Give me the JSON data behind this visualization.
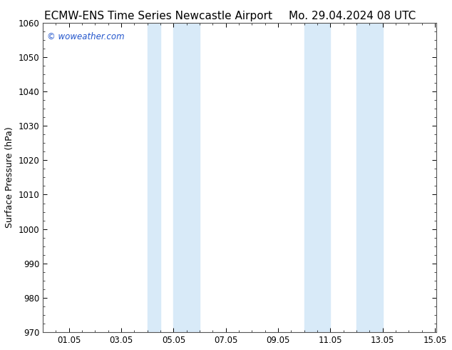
{
  "title_left": "ECMW-ENS Time Series Newcastle Airport",
  "title_right": "Mo. 29.04.2024 08 UTC",
  "ylabel": "Surface Pressure (hPa)",
  "xlim": [
    0,
    15.05
  ],
  "ylim": [
    970,
    1060
  ],
  "yticks": [
    970,
    980,
    990,
    1000,
    1010,
    1020,
    1030,
    1040,
    1050,
    1060
  ],
  "xtick_positions": [
    1,
    3,
    5,
    7,
    9,
    11,
    13,
    15
  ],
  "xtick_labels": [
    "01.05",
    "03.05",
    "05.05",
    "07.05",
    "09.05",
    "11.05",
    "13.05",
    "15.05"
  ],
  "background_color": "#ffffff",
  "plot_bg_color": "#ffffff",
  "shaded_regions": [
    {
      "xmin": 4.0,
      "xmax": 4.5,
      "color": "#d8eaf8"
    },
    {
      "xmin": 5.0,
      "xmax": 6.0,
      "color": "#d8eaf8"
    },
    {
      "xmin": 10.0,
      "xmax": 11.0,
      "color": "#d8eaf8"
    },
    {
      "xmin": 12.0,
      "xmax": 13.0,
      "color": "#d8eaf8"
    }
  ],
  "watermark_text": "© woweather.com",
  "watermark_color": "#2255cc",
  "title_fontsize": 11,
  "tick_fontsize": 8.5,
  "ylabel_fontsize": 9,
  "border_color": "#555555",
  "minor_tick_count": 4
}
